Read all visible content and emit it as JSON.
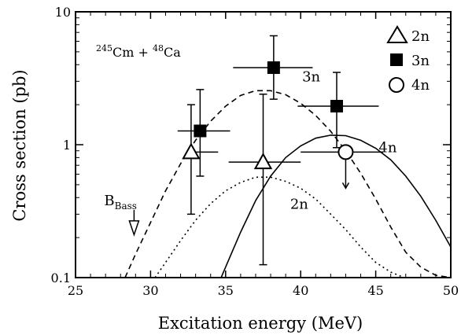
{
  "chart_data": {
    "type": "scatter",
    "xlabel": "Excitation energy (MeV)",
    "ylabel": "Cross section (pb)",
    "xlim": [
      25,
      50
    ],
    "ylim": [
      0.1,
      10
    ],
    "yscale": "log",
    "x_ticks": [
      "25",
      "30",
      "35",
      "40",
      "45",
      "50"
    ],
    "y_ticks": [
      {
        "value": 0.1,
        "label": "0.1"
      },
      {
        "value": 1,
        "label": "1"
      },
      {
        "value": 10,
        "label": "10"
      }
    ],
    "reaction": {
      "a1": "245",
      "e1": "Cm",
      "plus": "+",
      "a2": "48",
      "e2": "Ca"
    },
    "legend": [
      {
        "label": "2n",
        "marker": "triangle-open"
      },
      {
        "label": "3n",
        "marker": "square-filled"
      },
      {
        "label": "4n",
        "marker": "circle-open"
      }
    ],
    "points": [
      {
        "series": "2n",
        "x": 32.7,
        "y": 0.88,
        "xerr": [
          32.5,
          34.5
        ],
        "yerr": [
          0.3,
          2.0
        ]
      },
      {
        "series": "2n",
        "x": 37.5,
        "y": 0.74,
        "xerr": [
          35.2,
          40.0
        ],
        "yerr": [
          0.125,
          2.4
        ]
      },
      {
        "series": "3n",
        "x": 33.3,
        "y": 1.27,
        "xerr": [
          31.8,
          35.3
        ],
        "yerr": [
          0.58,
          2.6
        ]
      },
      {
        "series": "3n",
        "x": 38.2,
        "y": 3.8,
        "xerr": [
          35.5,
          40.8
        ],
        "yerr": [
          2.2,
          6.6
        ]
      },
      {
        "series": "3n",
        "x": 42.4,
        "y": 1.95,
        "xerr": [
          39.8,
          45.2
        ],
        "yerr": [
          0.95,
          3.5
        ]
      },
      {
        "series": "4n",
        "x": 43.0,
        "y": 0.88,
        "xerr": [
          40.0,
          45.5
        ],
        "upper_limit": true,
        "arrow_to": 0.47
      }
    ],
    "curves": [
      {
        "series": "3n",
        "style": "dashed",
        "x": [
          28.3,
          29,
          30,
          31,
          32,
          33,
          34,
          35,
          36,
          37,
          38,
          39,
          40,
          41,
          42,
          43,
          44,
          45,
          46,
          47,
          48,
          49,
          50
        ],
        "y": [
          0.1,
          0.15,
          0.26,
          0.45,
          0.72,
          1.08,
          1.5,
          1.95,
          2.35,
          2.55,
          2.55,
          2.38,
          2.05,
          1.66,
          1.26,
          0.9,
          0.61,
          0.39,
          0.24,
          0.155,
          0.12,
          0.104,
          0.1
        ]
      },
      {
        "series": "2n",
        "style": "dotted",
        "x": [
          30.3,
          31,
          32,
          33,
          34,
          35,
          36,
          37,
          38,
          39,
          40,
          41,
          42,
          43,
          44,
          45,
          46,
          46.9
        ],
        "y": [
          0.1,
          0.13,
          0.19,
          0.27,
          0.36,
          0.45,
          0.52,
          0.57,
          0.57,
          0.53,
          0.47,
          0.39,
          0.3,
          0.23,
          0.17,
          0.13,
          0.11,
          0.1
        ]
      },
      {
        "series": "4n",
        "style": "solid",
        "x": [
          34.7,
          35,
          36,
          37,
          38,
          39,
          40,
          41,
          42,
          43,
          44,
          45,
          46,
          47,
          48,
          49,
          50
        ],
        "y": [
          0.1,
          0.12,
          0.22,
          0.38,
          0.58,
          0.8,
          0.98,
          1.12,
          1.18,
          1.17,
          1.08,
          0.94,
          0.77,
          0.58,
          0.41,
          0.27,
          0.17
        ]
      }
    ],
    "annotations": [
      {
        "text": "3n",
        "x": 40.1,
        "y": 3.0
      },
      {
        "text": "2n",
        "x": 39.3,
        "y": 0.33
      },
      {
        "text": "4n",
        "x": 45.2,
        "y": 0.88
      }
    ],
    "bass": {
      "label": "B",
      "sub": "Bass",
      "x": 28.9,
      "y_arrow_top": 0.29,
      "y_arrow_bottom": 0.21
    }
  }
}
